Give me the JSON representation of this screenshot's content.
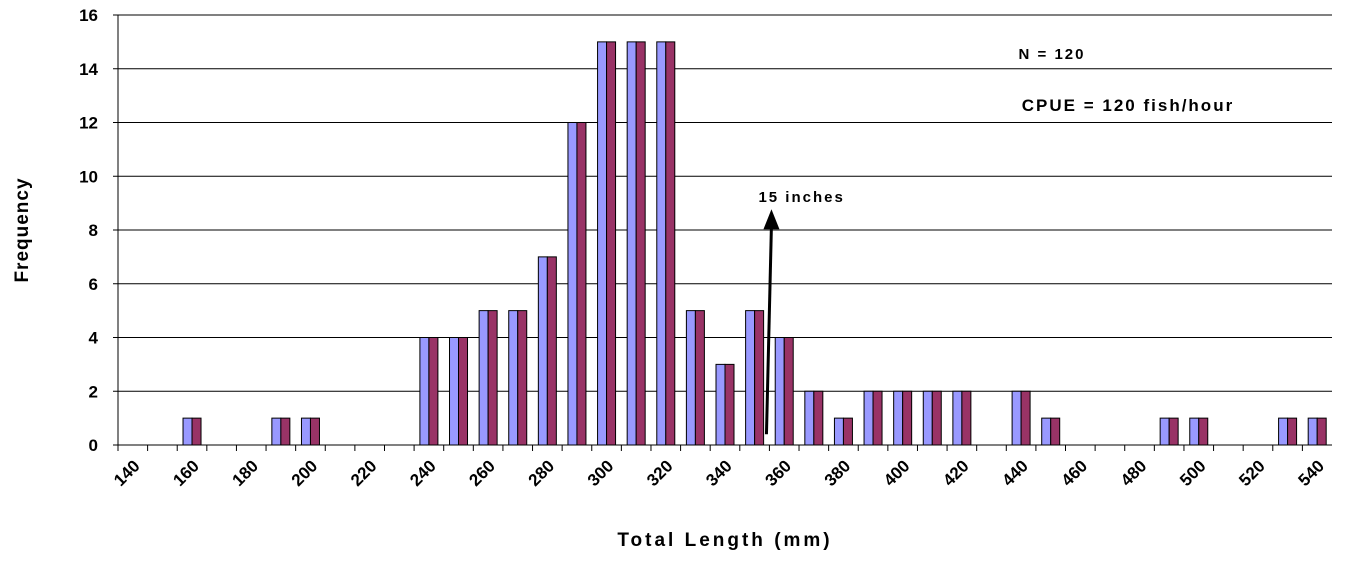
{
  "chart_data": {
    "type": "bar",
    "xlabel": "Total Length (mm)",
    "ylabel": "Frequency",
    "ylim": [
      0,
      16
    ],
    "yticks": [
      "0",
      "2",
      "4",
      "6",
      "8",
      "10",
      "12",
      "14",
      "16"
    ],
    "xticks": [
      "140",
      "160",
      "180",
      "200",
      "220",
      "240",
      "260",
      "280",
      "300",
      "320",
      "340",
      "360",
      "380",
      "400",
      "420",
      "440",
      "460",
      "480",
      "500",
      "520",
      "540"
    ],
    "grid": "horizontal",
    "bar_colors": [
      "#9999ff",
      "#993366"
    ],
    "bars": [
      {
        "x": 160,
        "value": 1
      },
      {
        "x": 190,
        "value": 1
      },
      {
        "x": 200,
        "value": 1
      },
      {
        "x": 240,
        "value": 4
      },
      {
        "x": 250,
        "value": 4
      },
      {
        "x": 260,
        "value": 5
      },
      {
        "x": 270,
        "value": 5
      },
      {
        "x": 280,
        "value": 7
      },
      {
        "x": 290,
        "value": 12
      },
      {
        "x": 300,
        "value": 15
      },
      {
        "x": 310,
        "value": 15
      },
      {
        "x": 320,
        "value": 15
      },
      {
        "x": 330,
        "value": 5
      },
      {
        "x": 340,
        "value": 3
      },
      {
        "x": 350,
        "value": 5
      },
      {
        "x": 360,
        "value": 4
      },
      {
        "x": 370,
        "value": 2
      },
      {
        "x": 380,
        "value": 1
      },
      {
        "x": 390,
        "value": 2
      },
      {
        "x": 400,
        "value": 2
      },
      {
        "x": 410,
        "value": 2
      },
      {
        "x": 420,
        "value": 2
      },
      {
        "x": 440,
        "value": 2
      },
      {
        "x": 450,
        "value": 1
      },
      {
        "x": 490,
        "value": 1
      },
      {
        "x": 500,
        "value": 1
      },
      {
        "x": 530,
        "value": 1
      },
      {
        "x": 540,
        "value": 1
      }
    ],
    "annotations": {
      "n_text": "N = 120",
      "cpue_text": "CPUE = 120 fish/hour",
      "arrow_label": "15 inches",
      "arrow_x": 354
    }
  }
}
